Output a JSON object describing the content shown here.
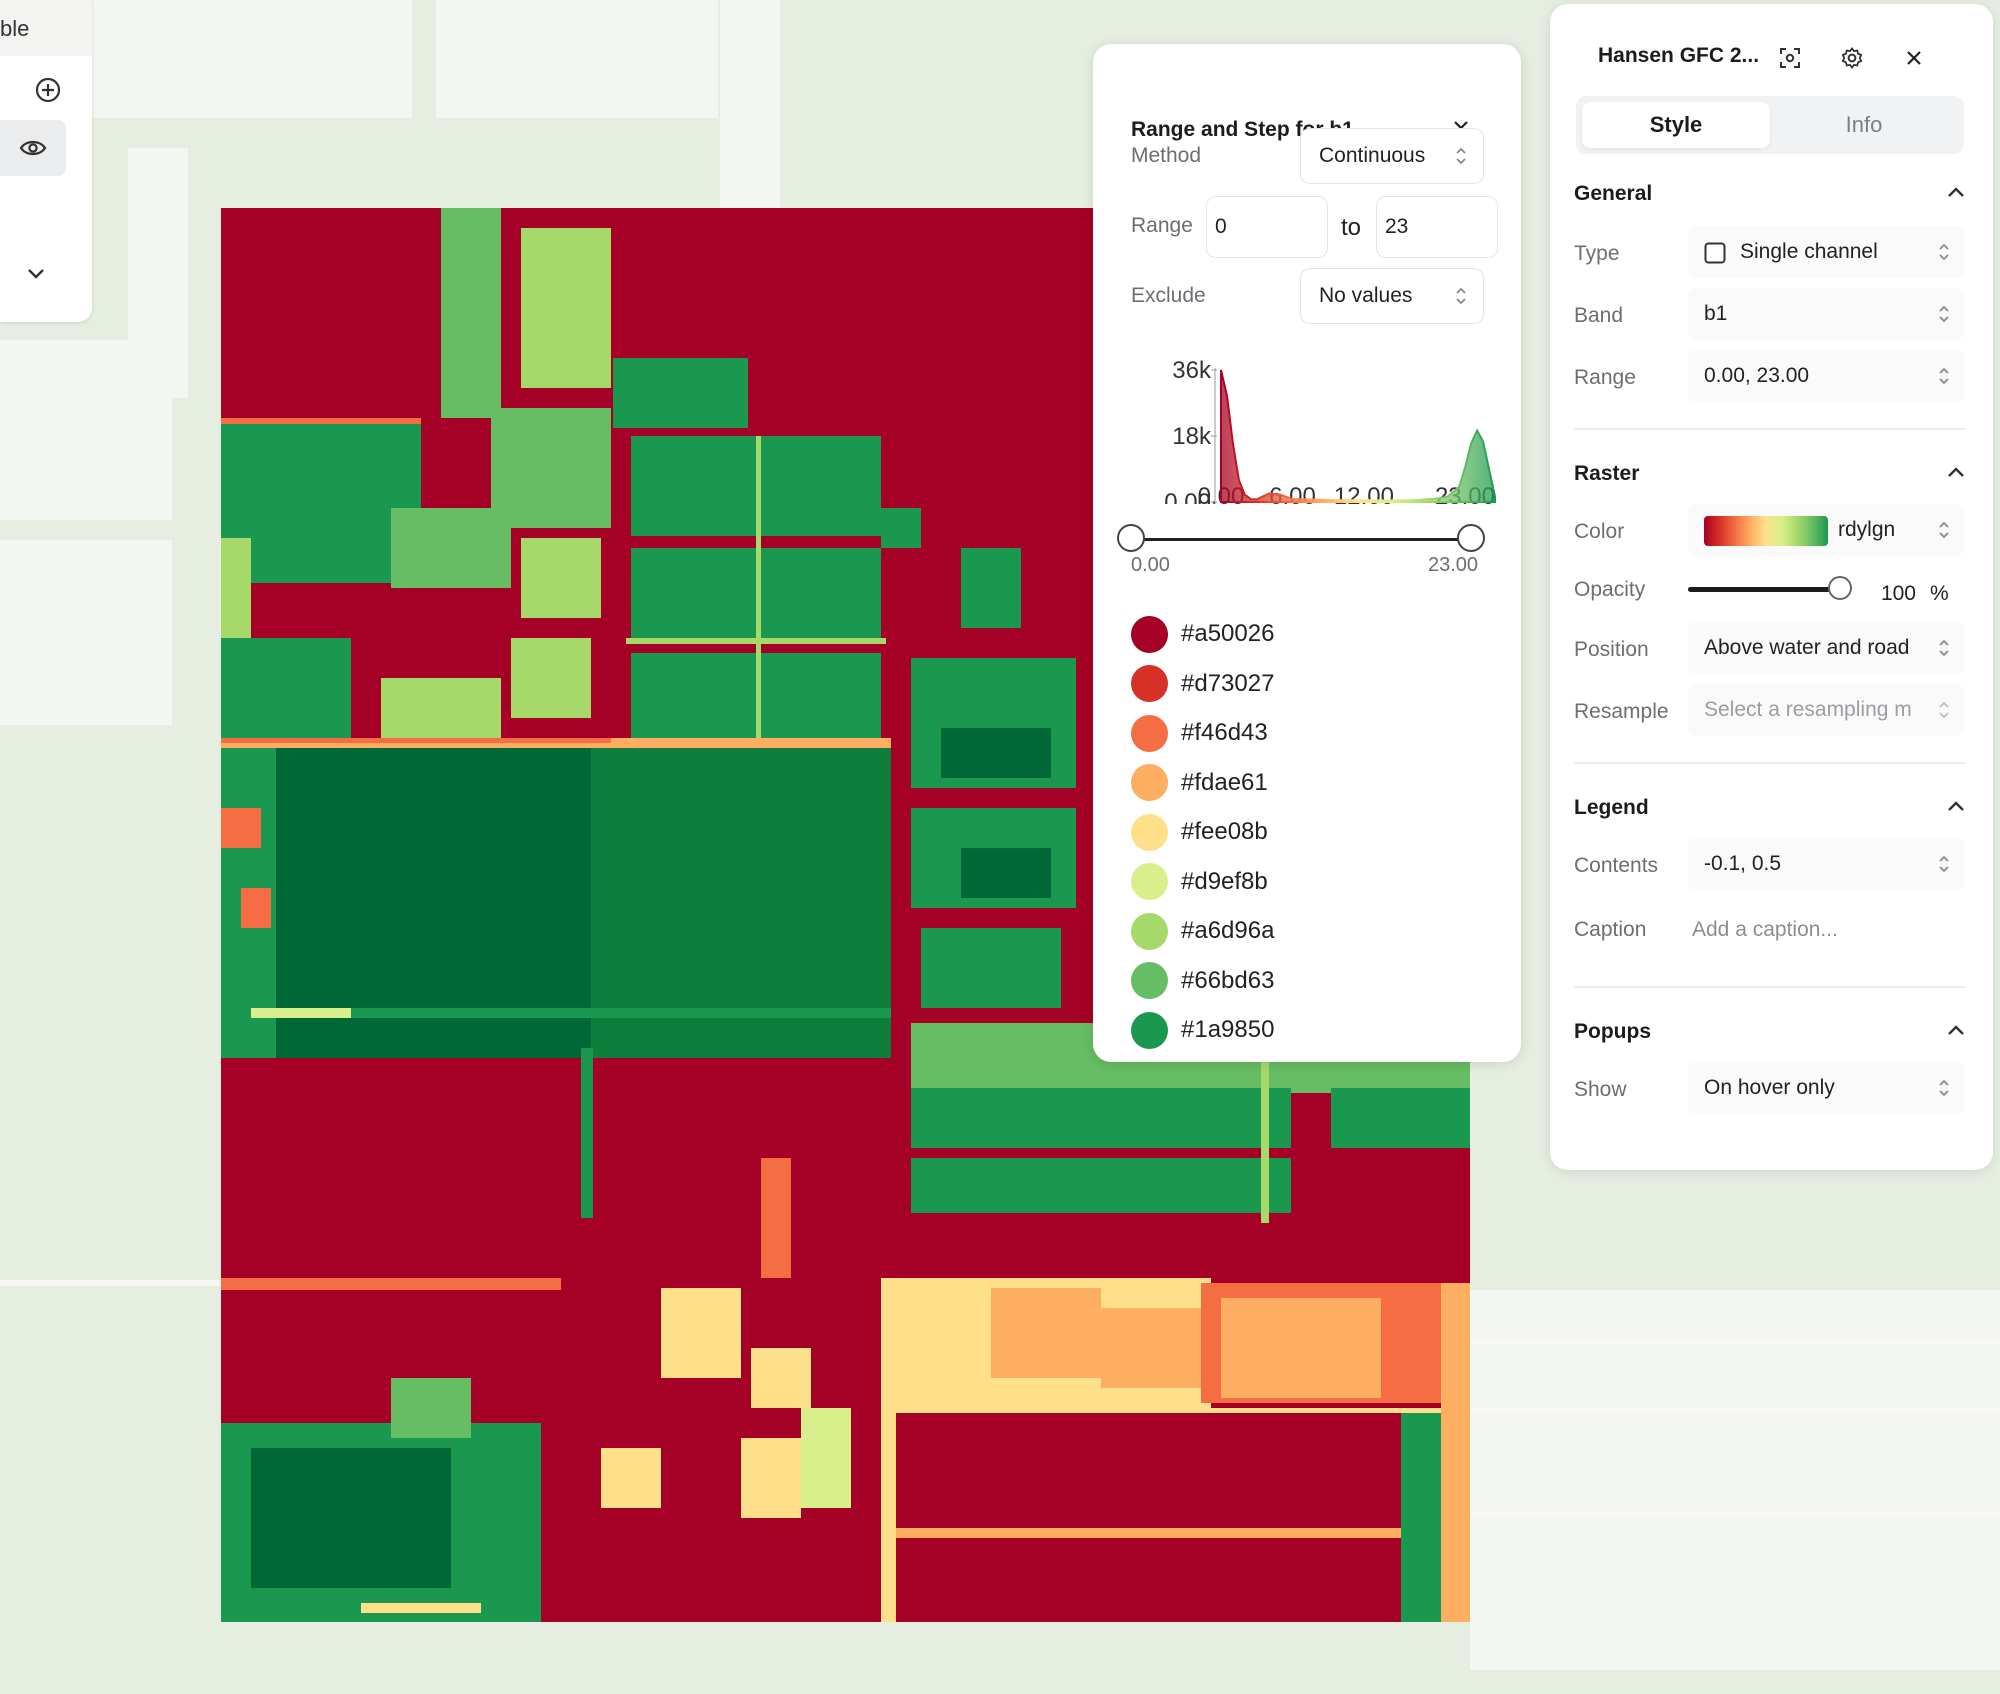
{
  "left_toolbar": {
    "top_text": "ble"
  },
  "popover": {
    "title": "Range and Step for b1",
    "method_label": "Method",
    "method_value": "Continuous",
    "range_label": "Range",
    "range_min": "0",
    "range_to": "to",
    "range_max": "23",
    "exclude_label": "Exclude",
    "exclude_value": "No values",
    "slider_min_label": "0.00",
    "slider_max_label": "23.00",
    "slider_min_fraction": 0,
    "slider_max_fraction": 1,
    "swatches": [
      {
        "color": "#a50026",
        "label": "#a50026"
      },
      {
        "color": "#d73027",
        "label": "#d73027"
      },
      {
        "color": "#f46d43",
        "label": "#f46d43"
      },
      {
        "color": "#fdae61",
        "label": "#fdae61"
      },
      {
        "color": "#fee08b",
        "label": "#fee08b"
      },
      {
        "color": "#d9ef8b",
        "label": "#d9ef8b"
      },
      {
        "color": "#a6d96a",
        "label": "#a6d96a"
      },
      {
        "color": "#66bd63",
        "label": "#66bd63"
      },
      {
        "color": "#1a9850",
        "label": "#1a9850"
      }
    ]
  },
  "chart_data": {
    "type": "area",
    "title": "",
    "xlabel": "",
    "ylabel": "",
    "x_ticks": [
      "0.00",
      "6.00",
      "12.00",
      "23.00"
    ],
    "y_ticks": [
      "36k",
      "18k",
      "0.00"
    ],
    "xlim": [
      0,
      23
    ],
    "ylim": [
      0,
      36000
    ],
    "x": [
      0,
      0.5,
      1,
      1.5,
      2,
      2.5,
      3,
      4,
      5,
      6,
      8,
      10,
      12,
      14,
      16,
      18,
      19,
      20,
      20.5,
      21,
      21.5,
      22,
      22.5,
      23
    ],
    "values": [
      36000,
      29000,
      16000,
      6000,
      2000,
      800,
      700,
      2300,
      2000,
      800,
      600,
      500,
      450,
      400,
      500,
      900,
      1400,
      4200,
      9500,
      16000,
      19500,
      16500,
      9000,
      1500
    ],
    "colorscale": "rdylgn"
  },
  "panel": {
    "title": "Hansen GFC 2...",
    "tab_style": "Style",
    "tab_info": "Info",
    "general": {
      "heading": "General",
      "type_label": "Type",
      "type_value": "Single channel",
      "band_label": "Band",
      "band_value": "b1",
      "range_label": "Range",
      "range_value": "0.00, 23.00"
    },
    "raster": {
      "heading": "Raster",
      "color_label": "Color",
      "color_value": "rdylgn",
      "opacity_label": "Opacity",
      "opacity_value": "100",
      "opacity_unit": "%",
      "opacity_fraction": 1,
      "position_label": "Position",
      "position_value": "Above water and road",
      "resample_label": "Resample",
      "resample_placeholder": "Select a resampling m"
    },
    "legend": {
      "heading": "Legend",
      "contents_label": "Contents",
      "contents_value": "-0.1, 0.5",
      "caption_label": "Caption",
      "caption_placeholder": "Add a caption..."
    },
    "popups": {
      "heading": "Popups",
      "show_label": "Show",
      "show_value": "On hover only"
    }
  }
}
